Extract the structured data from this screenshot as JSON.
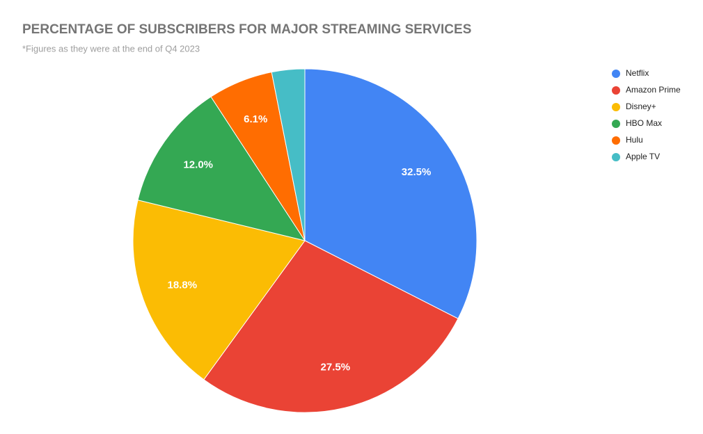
{
  "chart_data": {
    "type": "pie",
    "title": "PERCENTAGE OF SUBSCRIBERS FOR MAJOR STREAMING SERVICES",
    "subtitle": "*Figures as they were at the end of Q4 2023",
    "categories": [
      "Netflix",
      "Amazon Prime",
      "Disney+",
      "HBO Max",
      "Hulu",
      "Apple TV"
    ],
    "values": [
      32.5,
      27.5,
      18.8,
      12.0,
      6.1,
      3.1
    ],
    "value_labels": [
      "32.5%",
      "27.5%",
      "18.8%",
      "12.0%",
      "6.1%",
      null
    ],
    "colors": [
      "#4285f4",
      "#ea4335",
      "#fbbc04",
      "#34a853",
      "#ff6d01",
      "#46bdc6"
    ],
    "legend": "right"
  }
}
